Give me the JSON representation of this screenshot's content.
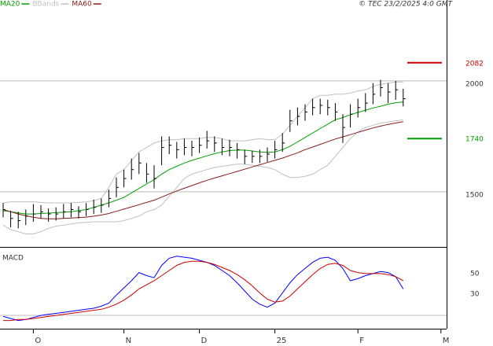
{
  "chart_data": [
    {
      "type": "ohlc",
      "annotation": "© TEC 23/2/2025 4:0 GMT",
      "bars": {
        "color": "#000000",
        "high": [
          1450,
          1415,
          1410,
          1420,
          1445,
          1440,
          1425,
          1430,
          1445,
          1450,
          1435,
          1450,
          1465,
          1470,
          1510,
          1565,
          1600,
          1650,
          1675,
          1630,
          1620,
          1750,
          1750,
          1725,
          1740,
          1730,
          1745,
          1775,
          1750,
          1740,
          1735,
          1720,
          1690,
          1685,
          1690,
          1700,
          1730,
          1765,
          1870,
          1880,
          1895,
          1920,
          1920,
          1915,
          1900,
          1850,
          1895,
          1920,
          1945,
          1990,
          2005,
          1990,
          2000,
          1965
        ],
        "low": [
          1385,
          1340,
          1335,
          1350,
          1365,
          1380,
          1365,
          1370,
          1380,
          1385,
          1380,
          1390,
          1400,
          1405,
          1430,
          1475,
          1520,
          1555,
          1580,
          1540,
          1515,
          1620,
          1670,
          1650,
          1665,
          1660,
          1675,
          1695,
          1680,
          1665,
          1660,
          1650,
          1625,
          1630,
          1630,
          1635,
          1650,
          1680,
          1770,
          1800,
          1820,
          1845,
          1850,
          1845,
          1820,
          1720,
          1790,
          1835,
          1860,
          1895,
          1930,
          1900,
          1915,
          1885
        ],
        "close": [
          1420,
          1380,
          1370,
          1390,
          1400,
          1410,
          1400,
          1400,
          1410,
          1420,
          1410,
          1420,
          1430,
          1440,
          1470,
          1520,
          1560,
          1600,
          1630,
          1580,
          1560,
          1700,
          1710,
          1690,
          1700,
          1700,
          1710,
          1730,
          1720,
          1700,
          1700,
          1690,
          1660,
          1660,
          1660,
          1670,
          1690,
          1720,
          1820,
          1840,
          1860,
          1880,
          1890,
          1880,
          1860,
          1790,
          1850,
          1880,
          1900,
          1940,
          1970,
          1950,
          1960,
          1920
        ]
      },
      "series": [
        {
          "name": "MA20",
          "color": "#00a000",
          "values": [
            1415,
            1410,
            1405,
            1400,
            1400,
            1402,
            1404,
            1406,
            1408,
            1410,
            1415,
            1420,
            1430,
            1440,
            1450,
            1462,
            1475,
            1495,
            1515,
            1535,
            1555,
            1580,
            1600,
            1615,
            1630,
            1642,
            1652,
            1662,
            1672,
            1680,
            1686,
            1688,
            1688,
            1684,
            1680,
            1678,
            1680,
            1690,
            1705,
            1725,
            1745,
            1765,
            1785,
            1805,
            1825,
            1835,
            1848,
            1858,
            1868,
            1878,
            1886,
            1895,
            1902,
            1905
          ]
        },
        {
          "name": "BBands",
          "color": "#c0c0c0",
          "values": [
            1450,
            1455,
            1455,
            1455,
            1455,
            1452,
            1450,
            1450,
            1450,
            1450,
            1452,
            1455,
            1460,
            1470,
            1520,
            1580,
            1600,
            1640,
            1680,
            1700,
            1720,
            1730,
            1735,
            1735,
            1740,
            1740,
            1740,
            1745,
            1745,
            1740,
            1730,
            1730,
            1730,
            1735,
            1740,
            1735,
            1735,
            1760,
            1800,
            1840,
            1880,
            1920,
            1935,
            1935,
            1940,
            1940,
            1945,
            1955,
            1960,
            1975,
            1985,
            1990,
            1995,
            1995
          ],
          "lower": [
            1350,
            1330,
            1320,
            1310,
            1310,
            1320,
            1335,
            1345,
            1350,
            1355,
            1360,
            1362,
            1365,
            1365,
            1365,
            1365,
            1370,
            1380,
            1390,
            1410,
            1420,
            1440,
            1480,
            1520,
            1560,
            1580,
            1590,
            1600,
            1610,
            1615,
            1620,
            1625,
            1625,
            1620,
            1615,
            1610,
            1600,
            1580,
            1565,
            1565,
            1570,
            1580,
            1600,
            1620,
            1660,
            1700,
            1740,
            1770,
            1790,
            1800,
            1810,
            1815,
            1820,
            1825
          ]
        },
        {
          "name": "MA60",
          "color": "#8b1a1a",
          "values": [
            1420,
            1410,
            1400,
            1392,
            1385,
            1380,
            1378,
            1378,
            1380,
            1382,
            1384,
            1386,
            1390,
            1395,
            1402,
            1412,
            1422,
            1432,
            1442,
            1452,
            1462,
            1476,
            1490,
            1504,
            1516,
            1528,
            1540,
            1552,
            1562,
            1572,
            1582,
            1592,
            1602,
            1612,
            1622,
            1632,
            1642,
            1652,
            1664,
            1676,
            1690,
            1702,
            1714,
            1726,
            1738,
            1748,
            1758,
            1768,
            1778,
            1788,
            1796,
            1804,
            1810,
            1816
          ]
        }
      ],
      "levels": [
        {
          "value": 2082,
          "color": "#cc0000"
        },
        {
          "value": 1740,
          "color": "#00a000"
        }
      ],
      "ylim": [
        1255,
        2365
      ],
      "yticks": [
        1500,
        2000
      ],
      "grid": true
    },
    {
      "type": "line",
      "title": "MACD",
      "categories": [
        null,
        null,
        null,
        null,
        "O",
        null,
        null,
        null,
        null,
        null,
        null,
        null,
        null,
        null,
        null,
        null,
        "N",
        null,
        null,
        null,
        null,
        null,
        null,
        null,
        null,
        null,
        "D",
        null,
        null,
        null,
        null,
        null,
        null,
        null,
        null,
        null,
        "25",
        null,
        null,
        null,
        null,
        null,
        null,
        null,
        null,
        null,
        null,
        "F",
        null,
        null,
        null,
        null,
        null,
        null,
        null,
        null,
        null,
        null,
        "M"
      ],
      "series": [
        {
          "color": "#0000ff",
          "values": [
            5,
            3,
            1,
            2,
            4,
            6,
            7,
            8,
            9,
            10,
            11,
            12,
            13,
            15,
            18,
            26,
            33,
            40,
            48,
            45,
            43,
            55,
            62,
            64,
            63,
            62,
            60,
            58,
            55,
            50,
            45,
            38,
            30,
            22,
            17,
            14,
            18,
            28,
            38,
            46,
            52,
            58,
            62,
            63,
            60,
            52,
            40,
            42,
            45,
            47,
            49,
            48,
            44,
            32,
            null,
            null,
            null,
            null,
            null
          ]
        },
        {
          "color": "#cc0000",
          "values": [
            1,
            1,
            2,
            2,
            3,
            4,
            5,
            6,
            7,
            8,
            9,
            10,
            11,
            12,
            14,
            17,
            21,
            26,
            32,
            36,
            40,
            45,
            50,
            55,
            58,
            59,
            59,
            58,
            56,
            53,
            50,
            46,
            41,
            35,
            28,
            22,
            19,
            20,
            25,
            32,
            39,
            46,
            52,
            56,
            57,
            55,
            50,
            48,
            47,
            47,
            47,
            46,
            44,
            40,
            null,
            null,
            null,
            null,
            null
          ]
        }
      ],
      "ylim": [
        -7,
        70.8
      ],
      "yticks": [
        30,
        50
      ]
    }
  ]
}
